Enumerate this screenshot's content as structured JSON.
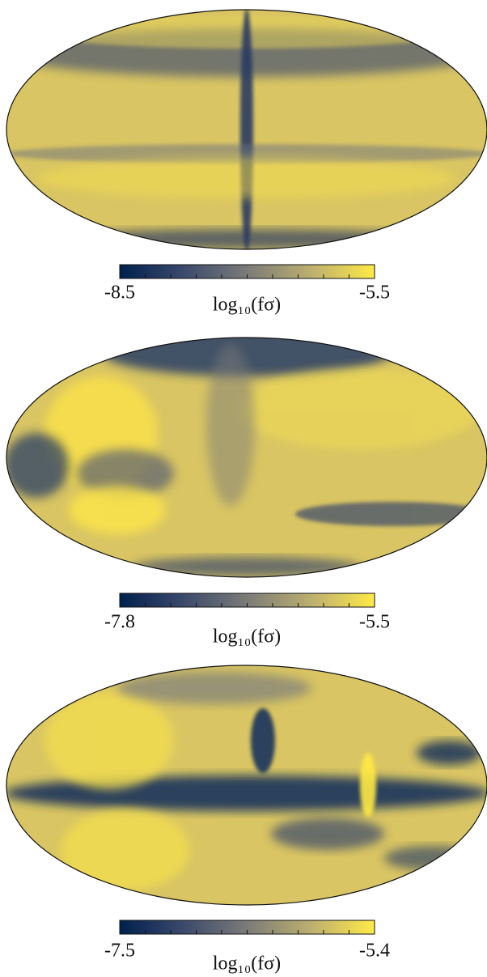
{
  "chart_data": [
    {
      "type": "mollweide-map",
      "colorbar": {
        "label": "log₁₀(fσ)",
        "lim": [
          -8.5,
          -5.5
        ],
        "ticks": [
          -8.5,
          -5.5
        ]
      }
    },
    {
      "type": "mollweide-map",
      "colorbar": {
        "label": "log₁₀(fσ)",
        "lim": [
          -7.8,
          -5.5
        ],
        "ticks": [
          -7.8,
          -5.5
        ]
      }
    },
    {
      "type": "mollweide-map",
      "colorbar": {
        "label": "log₁₀(fσ)",
        "lim": [
          -7.5,
          -5.4
        ],
        "ticks": [
          -7.5,
          -5.4
        ]
      }
    }
  ]
}
